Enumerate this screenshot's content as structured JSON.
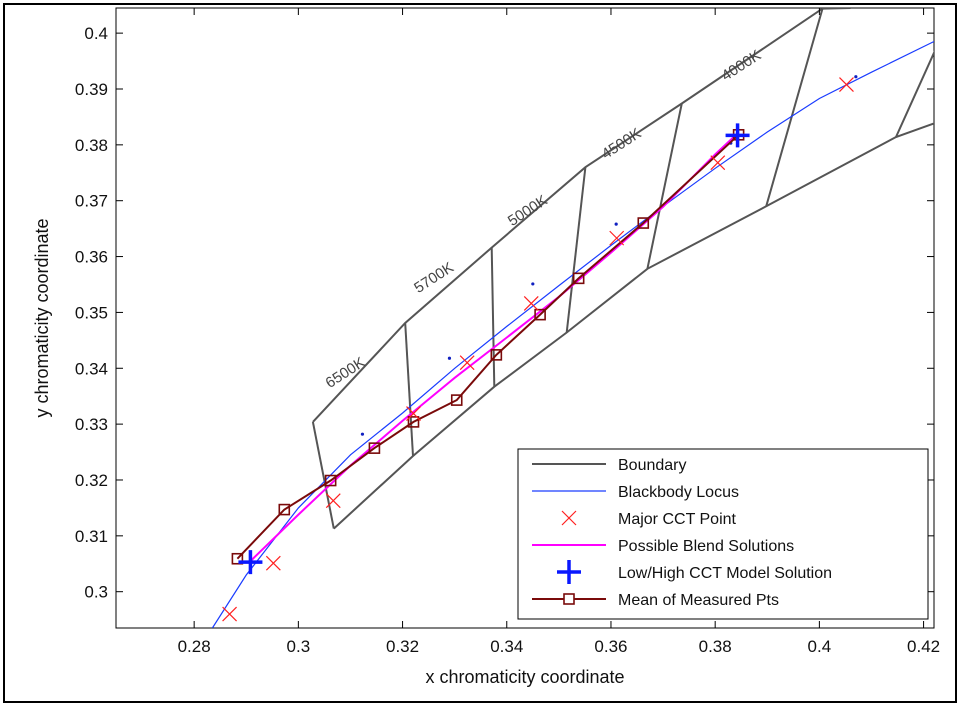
{
  "chart_data": {
    "type": "line",
    "title": "",
    "xlabel": "x chromaticity coordinate",
    "ylabel": "y chromaticity coordinate",
    "xlim": [
      0.265,
      0.422
    ],
    "ylim": [
      0.2935,
      0.4045
    ],
    "x_ticks": [
      0.28,
      0.3,
      0.32,
      0.34,
      0.36,
      0.38,
      0.4,
      0.42
    ],
    "y_ticks": [
      0.3,
      0.31,
      0.32,
      0.33,
      0.34,
      0.35,
      0.36,
      0.37,
      0.38,
      0.39,
      0.4
    ],
    "x_tick_labels": [
      "0.28",
      "0.3",
      "0.32",
      "0.34",
      "0.36",
      "0.38",
      "0.4",
      "0.42"
    ],
    "y_tick_labels": [
      "0.3",
      "0.31",
      "0.32",
      "0.33",
      "0.34",
      "0.35",
      "0.36",
      "0.37",
      "0.38",
      "0.39",
      "0.4"
    ],
    "grid": false,
    "legend_position": "bottom-right",
    "colors": {
      "boundary": "#555555",
      "blackbody": "#1a3cff",
      "major_cct": "#ff2020",
      "blend": "#ff00ff",
      "model": "#0a18ff",
      "measured": "#7a0a0a",
      "dots": "#1020c0"
    },
    "legend": [
      {
        "key": "boundary",
        "label": "Boundary",
        "style": "line"
      },
      {
        "key": "blackbody",
        "label": "Blackbody Locus",
        "style": "line"
      },
      {
        "key": "major_cct",
        "label": "Major CCT Point",
        "style": "x"
      },
      {
        "key": "blend",
        "label": "Possible Blend Solutions",
        "style": "line"
      },
      {
        "key": "model",
        "label": "Low/High CCT Model Solution",
        "style": "plus"
      },
      {
        "key": "measured",
        "label": "Mean of Measured Pts",
        "style": "line-square"
      }
    ],
    "cct_labels": [
      {
        "text": "6500K",
        "x": 0.3095,
        "y": 0.3385
      },
      {
        "text": "5700K",
        "x": 0.3265,
        "y": 0.3555
      },
      {
        "text": "5000K",
        "x": 0.3445,
        "y": 0.3675
      },
      {
        "text": "4500K",
        "x": 0.3625,
        "y": 0.3795
      },
      {
        "text": "4000K",
        "x": 0.3855,
        "y": 0.3935
      }
    ],
    "boundary_series": [
      {
        "name": "lower-band",
        "x": [
          0.3068,
          0.322,
          0.3376,
          0.3515,
          0.367,
          0.3898,
          0.4147,
          0.4225
        ],
        "y": [
          0.3113,
          0.3243,
          0.3367,
          0.3464,
          0.3578,
          0.369,
          0.3814,
          0.384
        ]
      },
      {
        "name": "upper-band",
        "x": [
          0.3028,
          0.3205,
          0.3371,
          0.3551,
          0.3736,
          0.4006,
          0.406
        ],
        "y": [
          0.3304,
          0.3481,
          0.3616,
          0.376,
          0.3874,
          0.4044,
          0.4045
        ]
      },
      {
        "name": "6500K-quad",
        "x": [
          0.3028,
          0.3068
        ],
        "y": [
          0.3304,
          0.3113
        ]
      },
      {
        "name": "5700K-quad",
        "x": [
          0.3205,
          0.322
        ],
        "y": [
          0.3481,
          0.3243
        ]
      },
      {
        "name": "5000K-quad",
        "x": [
          0.3371,
          0.3376
        ],
        "y": [
          0.3616,
          0.3367
        ]
      },
      {
        "name": "4500K-quad",
        "x": [
          0.3551,
          0.3515
        ],
        "y": [
          0.376,
          0.3464
        ]
      },
      {
        "name": "4000K-quad",
        "x": [
          0.3736,
          0.367
        ],
        "y": [
          0.3874,
          0.3578
        ]
      },
      {
        "name": "3500K-quad",
        "x": [
          0.4006,
          0.3898
        ],
        "y": [
          0.4044,
          0.369
        ]
      },
      {
        "name": "3000K-quad",
        "x": [
          0.4225,
          0.4147
        ],
        "y": [
          0.3975,
          0.3814
        ]
      }
    ],
    "blackbody_locus": {
      "x": [
        0.2835,
        0.29,
        0.3,
        0.31,
        0.32,
        0.33,
        0.34,
        0.35,
        0.36,
        0.37,
        0.38,
        0.39,
        0.4,
        0.41,
        0.422
      ],
      "y": [
        0.2935,
        0.303,
        0.315,
        0.3245,
        0.332,
        0.34,
        0.3475,
        0.3548,
        0.362,
        0.369,
        0.3758,
        0.3823,
        0.3883,
        0.393,
        0.3985
      ]
    },
    "major_cct_points": {
      "x": [
        0.2868,
        0.2952,
        0.3067,
        0.3221,
        0.3324,
        0.3447,
        0.3611,
        0.3805,
        0.4052
      ],
      "y": [
        0.296,
        0.3051,
        0.3163,
        0.3319,
        0.341,
        0.3516,
        0.3633,
        0.3768,
        0.3908
      ]
    },
    "blue_dots": {
      "x": [
        0.3123,
        0.329,
        0.345,
        0.361,
        0.383,
        0.407
      ],
      "y": [
        0.3282,
        0.3418,
        0.3551,
        0.3658,
        0.3803,
        0.3922
      ]
    },
    "possible_blend_solutions": {
      "x": [
        0.2905,
        0.3,
        0.31,
        0.32,
        0.33,
        0.34,
        0.35,
        0.36,
        0.37,
        0.38,
        0.384
      ],
      "y": [
        0.3052,
        0.3138,
        0.3226,
        0.3306,
        0.3383,
        0.3455,
        0.3528,
        0.3607,
        0.3689,
        0.3783,
        0.3818
      ]
    },
    "model_solutions": {
      "x": [
        0.2908,
        0.3843
      ],
      "y": [
        0.3053,
        0.3817
      ]
    },
    "mean_measured_points": {
      "x": [
        0.2883,
        0.2973,
        0.3062,
        0.3146,
        0.3221,
        0.3304,
        0.338,
        0.3464,
        0.3538,
        0.3662,
        0.3845
      ],
      "y": [
        0.3059,
        0.3147,
        0.3199,
        0.3257,
        0.3304,
        0.3343,
        0.3424,
        0.3496,
        0.3561,
        0.366,
        0.3818
      ]
    }
  }
}
